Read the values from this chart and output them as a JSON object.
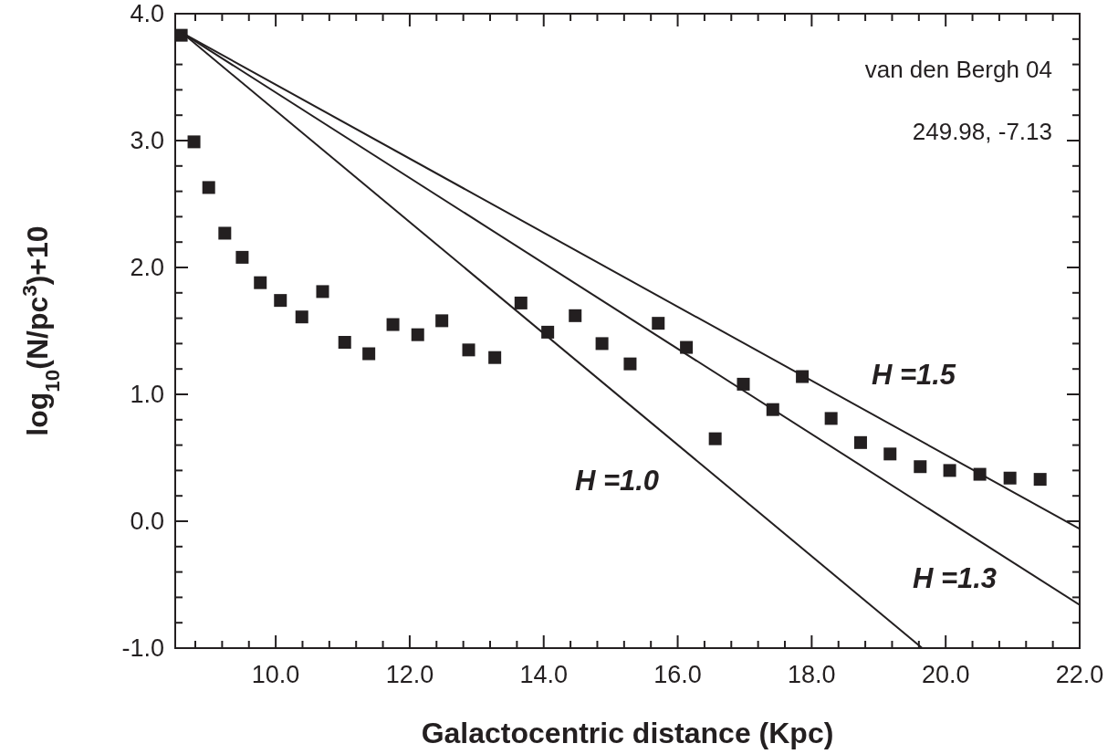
{
  "chart_data": {
    "type": "scatter",
    "xlabel": "Galactocentric distance (Kpc)",
    "ylabel": "log$_{10}$(N/pc$^{3}$)+10",
    "xlim": [
      8.5,
      22
    ],
    "ylim": [
      -1,
      4
    ],
    "xticks": [
      {
        "value": 8.8,
        "label": null
      },
      {
        "value": 9.2,
        "label": null
      },
      {
        "value": 9.6,
        "label": null
      },
      {
        "value": 10,
        "label": "10.0"
      },
      {
        "value": 10.4,
        "label": null
      },
      {
        "value": 10.8,
        "label": null
      },
      {
        "value": 11.2,
        "label": null
      },
      {
        "value": 11.6,
        "label": null
      },
      {
        "value": 12,
        "label": "12.0"
      },
      {
        "value": 12.4,
        "label": null
      },
      {
        "value": 12.8,
        "label": null
      },
      {
        "value": 13.2,
        "label": null
      },
      {
        "value": 13.6,
        "label": null
      },
      {
        "value": 14,
        "label": "14.0"
      },
      {
        "value": 14.4,
        "label": null
      },
      {
        "value": 14.8,
        "label": null
      },
      {
        "value": 15.2,
        "label": null
      },
      {
        "value": 15.6,
        "label": null
      },
      {
        "value": 16,
        "label": "16.0"
      },
      {
        "value": 16.4,
        "label": null
      },
      {
        "value": 16.8,
        "label": null
      },
      {
        "value": 17.2,
        "label": null
      },
      {
        "value": 17.6,
        "label": null
      },
      {
        "value": 18,
        "label": "18.0"
      },
      {
        "value": 18.4,
        "label": null
      },
      {
        "value": 18.8,
        "label": null
      },
      {
        "value": 19.2,
        "label": null
      },
      {
        "value": 19.6,
        "label": null
      },
      {
        "value": 20,
        "label": "20.0"
      },
      {
        "value": 20.4,
        "label": null
      },
      {
        "value": 20.8,
        "label": null
      },
      {
        "value": 21.2,
        "label": null
      },
      {
        "value": 21.6,
        "label": null
      },
      {
        "value": 22,
        "label": "22.0"
      }
    ],
    "yticks": [
      {
        "value": -1,
        "label": "-1.0"
      },
      {
        "value": -0.8,
        "label": null
      },
      {
        "value": -0.6,
        "label": null
      },
      {
        "value": -0.4,
        "label": null
      },
      {
        "value": -0.2,
        "label": null
      },
      {
        "value": 0,
        "label": "0.0"
      },
      {
        "value": 0.2,
        "label": null
      },
      {
        "value": 0.4,
        "label": null
      },
      {
        "value": 0.6,
        "label": null
      },
      {
        "value": 0.8,
        "label": null
      },
      {
        "value": 1,
        "label": "1.0"
      },
      {
        "value": 1.2,
        "label": null
      },
      {
        "value": 1.4,
        "label": null
      },
      {
        "value": 1.6,
        "label": null
      },
      {
        "value": 1.8,
        "label": null
      },
      {
        "value": 2,
        "label": "2.0"
      },
      {
        "value": 2.2,
        "label": null
      },
      {
        "value": 2.4,
        "label": null
      },
      {
        "value": 2.6,
        "label": null
      },
      {
        "value": 2.8,
        "label": null
      },
      {
        "value": 3,
        "label": "3.0"
      },
      {
        "value": 3.2,
        "label": null
      },
      {
        "value": 3.4,
        "label": null
      },
      {
        "value": 3.6,
        "label": null
      },
      {
        "value": 3.8,
        "label": null
      },
      {
        "value": 4,
        "label": "4.0"
      }
    ],
    "grid": false,
    "series": [
      {
        "marker": "square",
        "color": "#231f20",
        "x": [
          8.59,
          8.78,
          9.0,
          9.24,
          9.5,
          9.77,
          10.07,
          10.39,
          10.7,
          11.03,
          11.39,
          11.75,
          12.12,
          12.48,
          12.88,
          13.27,
          13.66,
          14.06,
          14.47,
          14.87,
          15.29,
          15.71,
          16.13,
          16.56,
          16.98,
          17.42,
          17.86,
          18.29,
          18.73,
          19.17,
          19.62,
          20.06,
          20.51,
          20.96,
          21.41
        ],
        "values": [
          3.83,
          2.99,
          2.63,
          2.27,
          2.08,
          1.88,
          1.74,
          1.61,
          1.81,
          1.41,
          1.32,
          1.55,
          1.47,
          1.58,
          1.35,
          1.29,
          1.72,
          1.49,
          1.62,
          1.4,
          1.24,
          1.56,
          1.37,
          0.65,
          1.08,
          0.88,
          1.14,
          0.81,
          0.62,
          0.53,
          0.43,
          0.4,
          0.37,
          0.34,
          0.33
        ]
      },
      {
        "type": "line",
        "color": "#231f20",
        "x": [
          8.6,
          19.65
        ],
        "values": [
          3.85,
          -1
        ]
      },
      {
        "type": "line",
        "color": "#231f20",
        "x": [
          8.6,
          22
        ],
        "values": [
          3.85,
          -0.66
        ]
      },
      {
        "type": "line",
        "color": "#231f20",
        "x": [
          8.6,
          22
        ],
        "values": [
          3.85,
          -0.06
        ]
      }
    ],
    "annotations": [
      "van den Bergh 04",
      "249.98, -7.13",
      "H =1.0",
      "H =1.3",
      "H =1.5"
    ]
  }
}
